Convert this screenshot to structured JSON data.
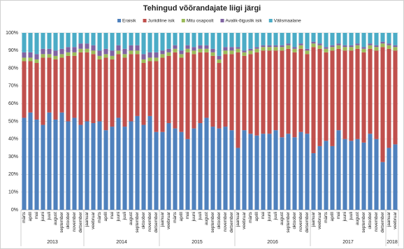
{
  "chart_data": {
    "type": "stacked_bar_100",
    "title": "Tehingud võõrandajate liigi järgi",
    "groups": [
      {
        "label": "2013",
        "categories": [
          "märts",
          "aprill",
          "mai",
          "juuni",
          "juuli",
          "august",
          "september",
          "oktoober",
          "november",
          "detsember"
        ]
      },
      {
        "label": "2014",
        "categories": [
          "jaanuar",
          "veebruar",
          "märts",
          "aprill",
          "mai",
          "juuni",
          "juuli",
          "august",
          "september",
          "oktoober",
          "november",
          "detsember"
        ]
      },
      {
        "label": "2015",
        "categories": [
          "jaanuar",
          "veebruar",
          "märts",
          "aprill",
          "mai",
          "juuni",
          "juuli",
          "august",
          "september",
          "oktoober",
          "november",
          "detsember"
        ]
      },
      {
        "label": "2016",
        "categories": [
          "jaanuar",
          "veebruar",
          "märts",
          "aprill",
          "mai",
          "juuni",
          "juuli",
          "august",
          "september",
          "oktoober",
          "november",
          "detsember"
        ]
      },
      {
        "label": "2017",
        "categories": [
          "jaanuar",
          "veebruar",
          "märts",
          "aprill",
          "mai",
          "juuni",
          "juuli",
          "august",
          "september",
          "oktoober",
          "november",
          "detsember"
        ]
      },
      {
        "label": "2018",
        "categories": [
          "jaanuar",
          "veebruar"
        ]
      }
    ],
    "series": [
      {
        "name": "Eraisik",
        "color": "#4f81bd",
        "values": [
          52,
          55,
          51,
          48,
          55,
          51,
          55,
          50,
          52,
          48,
          50,
          49,
          50,
          45,
          47,
          52,
          47,
          50,
          53,
          48,
          53,
          44,
          44,
          49,
          46,
          44,
          40,
          46,
          49,
          52,
          47,
          46,
          47,
          45,
          35,
          45,
          43,
          42,
          43,
          43,
          45,
          41,
          43,
          41,
          44,
          43,
          32,
          36,
          39,
          36,
          45,
          40,
          39,
          40,
          38,
          43,
          40,
          27,
          35,
          37
        ]
      },
      {
        "name": "Juriidiline isik",
        "color": "#c0504d",
        "values": [
          32,
          29,
          32,
          38,
          31,
          34,
          31,
          37,
          35,
          41,
          39,
          39,
          35,
          41,
          38,
          36,
          39,
          38,
          35,
          35,
          31,
          40,
          42,
          38,
          43,
          42,
          49,
          42,
          40,
          37,
          40,
          37,
          41,
          43,
          54,
          42,
          45,
          47,
          47,
          47,
          45,
          49,
          48,
          48,
          47,
          45,
          60,
          55,
          50,
          54,
          46,
          50,
          51,
          51,
          51,
          48,
          50,
          65,
          56,
          53
        ]
      },
      {
        "name": "Mitu osapoolt",
        "color": "#9bbb59",
        "values": [
          2,
          2,
          2,
          2,
          2,
          2,
          2,
          2,
          2,
          2,
          2,
          2,
          2,
          2,
          2,
          2,
          2,
          2,
          2,
          2,
          2,
          2,
          2,
          2,
          2,
          2,
          2,
          2,
          2,
          2,
          2,
          2,
          2,
          2,
          2,
          2,
          2,
          2,
          2,
          2,
          2,
          2,
          2,
          2,
          2,
          2,
          2,
          2,
          2,
          2,
          2,
          2,
          2,
          2,
          2,
          2,
          2,
          2,
          2,
          2
        ]
      },
      {
        "name": "Avalik-õiguslik isik",
        "color": "#8064a2",
        "values": [
          3,
          3,
          3,
          3,
          3,
          3,
          3,
          3,
          3,
          3,
          3,
          3,
          3,
          3,
          3,
          3,
          3,
          3,
          3,
          3,
          3,
          3,
          2,
          2,
          2,
          2,
          2,
          2,
          2,
          2,
          2,
          2,
          2,
          2,
          1,
          1,
          1,
          1,
          1,
          1,
          1,
          1,
          1,
          1,
          1,
          1,
          1,
          1,
          1,
          1,
          1,
          1,
          1,
          1,
          1,
          1,
          1,
          1,
          1,
          1
        ]
      },
      {
        "name": "Välismaalane",
        "color": "#4bacc6",
        "values": [
          11,
          11,
          12,
          9,
          9,
          10,
          9,
          8,
          8,
          6,
          6,
          7,
          10,
          9,
          10,
          7,
          9,
          7,
          7,
          12,
          11,
          11,
          10,
          9,
          7,
          10,
          7,
          8,
          7,
          7,
          9,
          13,
          8,
          8,
          8,
          10,
          9,
          8,
          7,
          7,
          7,
          7,
          6,
          8,
          6,
          9,
          5,
          6,
          8,
          7,
          6,
          7,
          7,
          6,
          8,
          6,
          7,
          5,
          6,
          7
        ]
      }
    ],
    "ylim": [
      0,
      100
    ],
    "yticks": [
      {
        "value": 0,
        "label": "0%"
      },
      {
        "value": 10,
        "label": "10%"
      },
      {
        "value": 20,
        "label": "20%"
      },
      {
        "value": 30,
        "label": "30%"
      },
      {
        "value": 40,
        "label": "40%"
      },
      {
        "value": 50,
        "label": "50%"
      },
      {
        "value": 60,
        "label": "60%"
      },
      {
        "value": 70,
        "label": "70%"
      },
      {
        "value": 80,
        "label": "80%"
      },
      {
        "value": 90,
        "label": "90%"
      },
      {
        "value": 100,
        "label": "100%"
      }
    ],
    "grid": true
  }
}
